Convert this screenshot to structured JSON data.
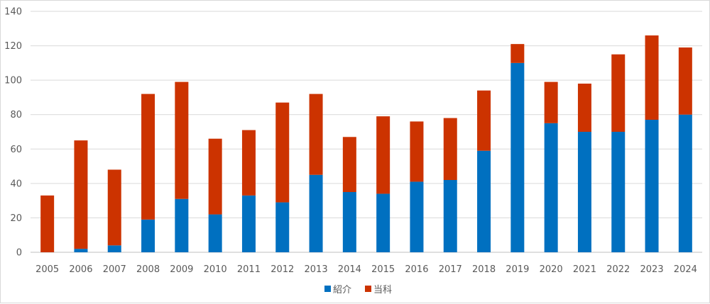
{
  "chart_data": {
    "type": "bar",
    "stacked": true,
    "title": "",
    "xlabel": "",
    "ylabel": "",
    "categories": [
      "2005",
      "2006",
      "2007",
      "2008",
      "2009",
      "2010",
      "2011",
      "2012",
      "2013",
      "2014",
      "2015",
      "2016",
      "2017",
      "2018",
      "2019",
      "2020",
      "2021",
      "2022",
      "2023",
      "2024"
    ],
    "series": [
      {
        "name": "紹介",
        "color": "#0070c0",
        "values": [
          0,
          2,
          4,
          19,
          31,
          22,
          33,
          29,
          45,
          35,
          34,
          41,
          42,
          59,
          110,
          75,
          70,
          70,
          77,
          80
        ]
      },
      {
        "name": "当科",
        "color": "#cc3300",
        "values": [
          33,
          63,
          44,
          73,
          68,
          44,
          38,
          58,
          47,
          32,
          45,
          35,
          36,
          35,
          11,
          24,
          28,
          45,
          49,
          39
        ]
      }
    ],
    "ylim": [
      0,
      140
    ],
    "yticks": [
      0,
      20,
      40,
      60,
      80,
      100,
      120,
      140
    ],
    "grid": true,
    "legend_position": "bottom"
  }
}
